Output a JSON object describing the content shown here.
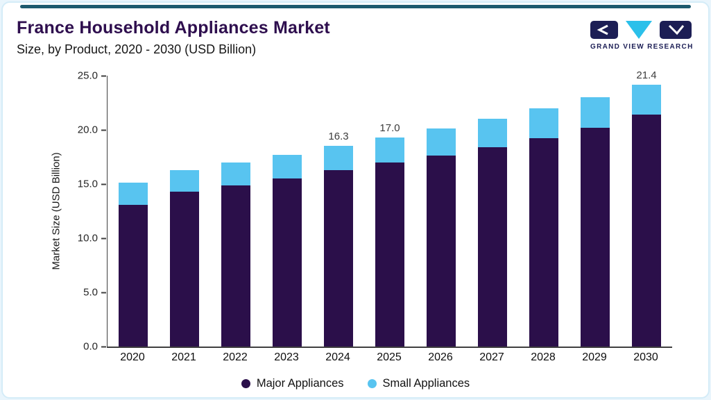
{
  "header": {
    "title": "France Household Appliances Market",
    "subtitle": "Size, by Product, 2020 - 2030 (USD Billion)",
    "logo_text": "GRAND VIEW RESEARCH"
  },
  "colors": {
    "accent_bar": "#1d5a6e",
    "title": "#2e0e4e",
    "card_border": "#d4ecf8",
    "page_background": "#e9f5fc",
    "axis": "#3f3f3f",
    "logo_navy": "#1c1e55",
    "logo_cyan": "#2bc0ea",
    "major_appliances": "#2b0f4a",
    "small_appliances": "#58c4f0"
  },
  "chart_data": {
    "type": "bar",
    "stacked": true,
    "title": "France Household Appliances Market Size, by Product, 2020 - 2030 (USD Billion)",
    "ylabel": "Market Size (USD Billion)",
    "xlabel": "",
    "ylim": [
      0,
      25
    ],
    "yticks": [
      "0.0",
      "5.0",
      "10.0",
      "15.0",
      "20.0",
      "25.0"
    ],
    "grid": false,
    "legend_position": "bottom",
    "categories": [
      "2020",
      "2021",
      "2022",
      "2023",
      "2024",
      "2025",
      "2026",
      "2027",
      "2028",
      "2029",
      "2030"
    ],
    "series": [
      {
        "name": "Major Appliances",
        "color": "#2b0f4a",
        "values": [
          13.1,
          14.3,
          14.9,
          15.5,
          16.3,
          17.0,
          17.6,
          18.4,
          19.2,
          20.2,
          21.4
        ]
      },
      {
        "name": "Small Appliances",
        "color": "#58c4f0",
        "values": [
          2.0,
          2.0,
          2.1,
          2.2,
          2.2,
          2.3,
          2.5,
          2.6,
          2.8,
          2.8,
          2.8
        ]
      }
    ],
    "bar_value_labels": {
      "2024": "16.3",
      "2025": "17.0",
      "2030": "21.4"
    }
  }
}
